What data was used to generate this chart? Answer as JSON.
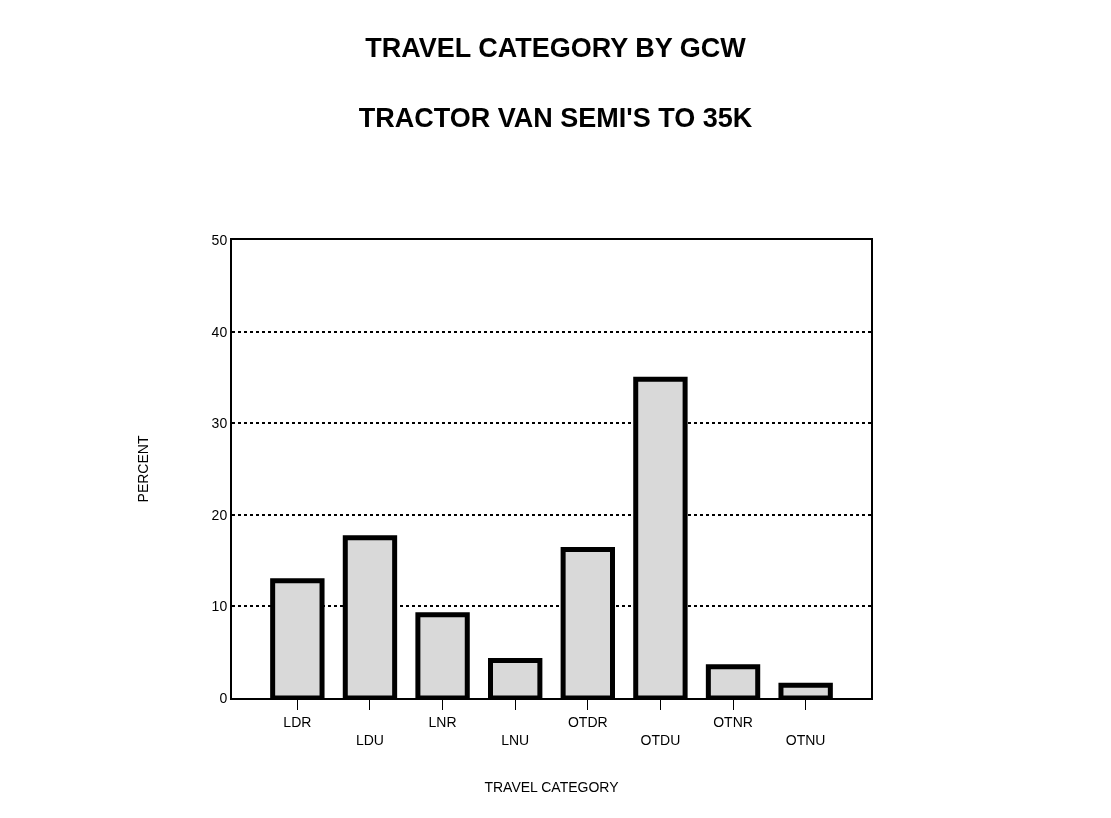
{
  "chart_data": {
    "type": "bar",
    "title": "TRAVEL CATEGORY BY GCW",
    "subtitle": "TRACTOR VAN SEMI'S TO 35K",
    "xlabel": "TRAVEL CATEGORY",
    "ylabel": "PERCENT",
    "categories": [
      "LDR",
      "LDU",
      "LNR",
      "LNU",
      "OTDR",
      "OTDU",
      "OTNR",
      "OTNU"
    ],
    "values": [
      12.8,
      17.5,
      9.1,
      4.1,
      16.2,
      34.8,
      3.4,
      1.4
    ],
    "color": "#d9d9d9",
    "ylim": [
      0,
      50
    ],
    "yticks": [
      0,
      10,
      20,
      30,
      40,
      50
    ],
    "grid": "y"
  }
}
